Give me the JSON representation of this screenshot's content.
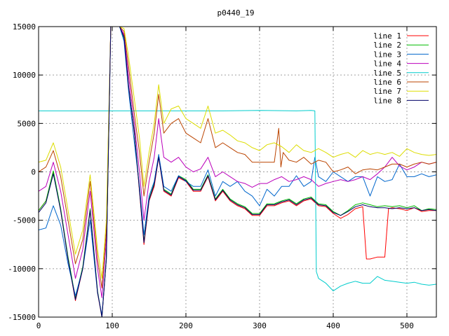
{
  "chart_data": {
    "type": "line",
    "title": "p0440_19",
    "xlabel": "",
    "ylabel": "",
    "xlim": [
      0,
      540
    ],
    "ylim": [
      -15000,
      15000
    ],
    "xticks": [
      0,
      100,
      200,
      300,
      400,
      500
    ],
    "yticks": [
      -15000,
      -10000,
      -5000,
      0,
      5000,
      10000,
      15000
    ],
    "grid": true,
    "legend_position": "top-right",
    "series": [
      {
        "name": "line 1",
        "color": "#ff0000",
        "x": [
          0,
          10,
          20,
          30,
          40,
          50,
          60,
          70,
          80,
          86,
          92,
          98,
          104,
          110,
          116,
          122,
          130,
          137,
          143,
          150,
          157,
          163,
          170,
          180,
          190,
          200,
          210,
          220,
          230,
          240,
          250,
          260,
          270,
          280,
          290,
          300,
          310,
          320,
          330,
          340,
          350,
          360,
          370,
          380,
          390,
          400,
          410,
          420,
          430,
          440,
          445,
          450,
          460,
          470,
          475,
          480,
          490,
          500,
          510,
          520,
          530,
          540
        ],
        "y": [
          -4000,
          -3000,
          0,
          -4000,
          -9000,
          -13300,
          -10000,
          -4000,
          -12500,
          -15000,
          -9000,
          15000,
          15000,
          15000,
          14000,
          9000,
          4000,
          -2000,
          -7500,
          -3000,
          -1500,
          1500,
          -2000,
          -2500,
          -600,
          -1000,
          -2000,
          -2000,
          -500,
          -3000,
          -2000,
          -3000,
          -3500,
          -3800,
          -4500,
          -4500,
          -3500,
          -3500,
          -3200,
          -3000,
          -3500,
          -3000,
          -2800,
          -3500,
          -3600,
          -4300,
          -4800,
          -4400,
          -3800,
          -3600,
          -9000,
          -9000,
          -8800,
          -8800,
          -3800,
          -3700,
          -3800,
          -4000,
          -3700,
          -4100,
          -4000,
          -4000
        ]
      },
      {
        "name": "line 2",
        "color": "#00bb00",
        "x": [
          0,
          10,
          20,
          30,
          40,
          50,
          60,
          70,
          80,
          86,
          92,
          98,
          104,
          110,
          116,
          122,
          130,
          137,
          143,
          150,
          157,
          163,
          170,
          180,
          190,
          200,
          210,
          220,
          230,
          240,
          250,
          260,
          270,
          280,
          290,
          300,
          310,
          320,
          330,
          340,
          350,
          360,
          370,
          380,
          390,
          400,
          410,
          420,
          430,
          440,
          450,
          460,
          470,
          480,
          490,
          500,
          510,
          520,
          530,
          540
        ],
        "y": [
          -4000,
          -3000,
          100,
          -3800,
          -8800,
          -13000,
          -9800,
          -3800,
          -12300,
          -15000,
          -8800,
          15000,
          15000,
          15000,
          13800,
          8800,
          4200,
          -1800,
          -7200,
          -2800,
          -1200,
          1600,
          -1800,
          -2300,
          -400,
          -800,
          -1800,
          -1800,
          -300,
          -2800,
          -1800,
          -2800,
          -3300,
          -3600,
          -4300,
          -4300,
          -3300,
          -3300,
          -3000,
          -2800,
          -3300,
          -2800,
          -2600,
          -3300,
          -3400,
          -4100,
          -4500,
          -4000,
          -3400,
          -3200,
          -3400,
          -3600,
          -3500,
          -3600,
          -3500,
          -3700,
          -3500,
          -4000,
          -3800,
          -3900
        ]
      },
      {
        "name": "line 3",
        "color": "#0066cc",
        "x": [
          0,
          10,
          20,
          30,
          40,
          50,
          60,
          70,
          80,
          86,
          92,
          98,
          104,
          110,
          116,
          122,
          130,
          137,
          143,
          150,
          157,
          163,
          170,
          180,
          190,
          200,
          210,
          220,
          230,
          240,
          250,
          260,
          270,
          280,
          290,
          300,
          310,
          320,
          330,
          340,
          350,
          360,
          370,
          375,
          380,
          390,
          400,
          410,
          420,
          430,
          440,
          450,
          460,
          470,
          480,
          490,
          500,
          510,
          520,
          530,
          540
        ],
        "y": [
          -6000,
          -5800,
          -3500,
          -5500,
          -9500,
          -12800,
          -10000,
          -5000,
          -12500,
          -14800,
          -9000,
          15000,
          15000,
          15000,
          13500,
          8500,
          3000,
          -1500,
          -6500,
          -2500,
          -1000,
          1800,
          -1500,
          -2000,
          -400,
          -1000,
          -1500,
          -1500,
          200,
          -2500,
          -1000,
          -1500,
          -1000,
          -2000,
          -2500,
          -3500,
          -1800,
          -2500,
          -1500,
          -1500,
          -400,
          -1500,
          -1000,
          1500,
          -500,
          -1000,
          0,
          -500,
          -1000,
          -500,
          -500,
          -2500,
          -500,
          -1000,
          -800,
          800,
          -500,
          -500,
          -200,
          -500,
          -300
        ]
      },
      {
        "name": "line 4",
        "color": "#bb00bb",
        "x": [
          0,
          10,
          20,
          30,
          40,
          50,
          60,
          70,
          80,
          86,
          92,
          98,
          104,
          110,
          116,
          122,
          130,
          137,
          143,
          150,
          157,
          163,
          170,
          180,
          190,
          200,
          210,
          220,
          230,
          240,
          250,
          260,
          270,
          280,
          290,
          300,
          310,
          320,
          330,
          340,
          350,
          360,
          370,
          380,
          390,
          400,
          410,
          420,
          430,
          440,
          450,
          460,
          470,
          480,
          490,
          500,
          510,
          520,
          530,
          540
        ],
        "y": [
          -2000,
          -1500,
          1000,
          -2000,
          -6500,
          -11000,
          -8000,
          -2000,
          -10000,
          -13000,
          -7000,
          15000,
          15000,
          15000,
          14200,
          10000,
          5000,
          0,
          -5000,
          -1000,
          1500,
          5500,
          1500,
          1000,
          1500,
          500,
          0,
          300,
          1500,
          -500,
          0,
          -500,
          -1000,
          -1200,
          -1600,
          -1200,
          -1200,
          -800,
          -500,
          -1000,
          -800,
          -500,
          -800,
          -1500,
          -1200,
          -1000,
          -800,
          -1000,
          -800,
          -500,
          -800,
          -200,
          500,
          1500,
          600,
          200,
          500,
          1000,
          800,
          1000
        ]
      },
      {
        "name": "line 5",
        "color": "#00cccc",
        "x": [
          0,
          90,
          150,
          200,
          250,
          300,
          350,
          370,
          375,
          377,
          380,
          390,
          400,
          410,
          420,
          430,
          440,
          450,
          460,
          470,
          480,
          490,
          500,
          510,
          520,
          530,
          540
        ],
        "y": [
          6300,
          6300,
          6300,
          6300,
          6300,
          6350,
          6300,
          6350,
          6300,
          -10300,
          -11000,
          -11500,
          -12300,
          -11800,
          -11500,
          -11300,
          -11500,
          -11500,
          -10800,
          -11200,
          -11300,
          -11400,
          -11500,
          -11400,
          -11600,
          -11700,
          -11600
        ]
      },
      {
        "name": "line 6",
        "color": "#bb4400",
        "x": [
          0,
          10,
          20,
          30,
          40,
          50,
          60,
          70,
          80,
          86,
          92,
          98,
          104,
          110,
          116,
          122,
          130,
          137,
          143,
          150,
          157,
          163,
          170,
          180,
          190,
          200,
          210,
          220,
          230,
          240,
          250,
          260,
          270,
          280,
          290,
          300,
          310,
          320,
          326,
          329,
          332,
          340,
          350,
          360,
          370,
          380,
          390,
          400,
          410,
          420,
          430,
          440,
          450,
          460,
          470,
          480,
          490,
          500,
          510,
          520,
          530,
          540
        ],
        "y": [
          0,
          500,
          2200,
          -500,
          -5000,
          -9500,
          -7000,
          -1000,
          -9000,
          -12000,
          -6000,
          15000,
          15000,
          15000,
          14500,
          11000,
          6000,
          2000,
          -2500,
          1000,
          4000,
          8000,
          4000,
          5000,
          5500,
          4000,
          3500,
          3000,
          5500,
          2500,
          3000,
          2500,
          2000,
          1800,
          1000,
          1000,
          1000,
          1000,
          4500,
          500,
          2000,
          1200,
          1000,
          1500,
          800,
          1200,
          1000,
          0,
          200,
          500,
          -200,
          200,
          300,
          200,
          500,
          800,
          800,
          500,
          800,
          1000,
          800,
          1000
        ]
      },
      {
        "name": "line 7",
        "color": "#dddd00",
        "x": [
          0,
          10,
          20,
          30,
          40,
          50,
          60,
          70,
          80,
          86,
          92,
          98,
          104,
          110,
          116,
          122,
          130,
          137,
          143,
          150,
          157,
          163,
          170,
          180,
          190,
          200,
          210,
          220,
          230,
          240,
          250,
          260,
          270,
          280,
          290,
          300,
          310,
          320,
          330,
          340,
          350,
          360,
          370,
          380,
          390,
          400,
          410,
          420,
          430,
          440,
          450,
          460,
          470,
          480,
          490,
          500,
          510,
          520,
          530,
          540
        ],
        "y": [
          1000,
          1200,
          3000,
          500,
          -4000,
          -8500,
          -6000,
          -300,
          -8000,
          -11000,
          -5000,
          15000,
          15000,
          15000,
          14800,
          12000,
          7500,
          3500,
          -1500,
          2000,
          5000,
          9000,
          5000,
          6500,
          6800,
          5500,
          5000,
          4500,
          6800,
          4000,
          4300,
          3800,
          3200,
          3000,
          2500,
          2200,
          2800,
          3000,
          2600,
          2000,
          2800,
          2200,
          2000,
          2400,
          2000,
          1500,
          1800,
          2000,
          1500,
          2200,
          1800,
          2000,
          1800,
          2000,
          1600,
          2400,
          2000,
          1800,
          1700,
          1800
        ]
      },
      {
        "name": "line 8",
        "color": "#000066",
        "x": [
          0,
          10,
          20,
          30,
          40,
          50,
          60,
          70,
          80,
          86,
          92,
          98,
          104,
          110,
          116,
          122,
          130,
          137,
          143,
          150,
          157,
          163,
          170,
          180,
          190,
          200,
          210,
          220,
          230,
          240,
          250,
          260,
          270,
          280,
          290,
          300,
          310,
          320,
          330,
          340,
          350,
          360,
          370,
          380,
          390,
          400,
          410,
          420,
          430,
          440,
          450,
          460,
          470,
          480,
          490,
          500,
          510,
          520,
          530,
          540
        ],
        "y": [
          -4200,
          -3200,
          -200,
          -4000,
          -9000,
          -13200,
          -10000,
          -4000,
          -12400,
          -15000,
          -9000,
          15000,
          15000,
          15000,
          13900,
          8900,
          4100,
          -1900,
          -7300,
          -2900,
          -1300,
          1500,
          -1900,
          -2400,
          -500,
          -900,
          -1900,
          -1900,
          -400,
          -2900,
          -1900,
          -2900,
          -3400,
          -3700,
          -4400,
          -4400,
          -3400,
          -3400,
          -3100,
          -2900,
          -3400,
          -2900,
          -2700,
          -3400,
          -3500,
          -4200,
          -4500,
          -4100,
          -3600,
          -3400,
          -3600,
          -3700,
          -3700,
          -3800,
          -3700,
          -3800,
          -3700,
          -4000,
          -3900,
          -4000
        ]
      }
    ]
  }
}
